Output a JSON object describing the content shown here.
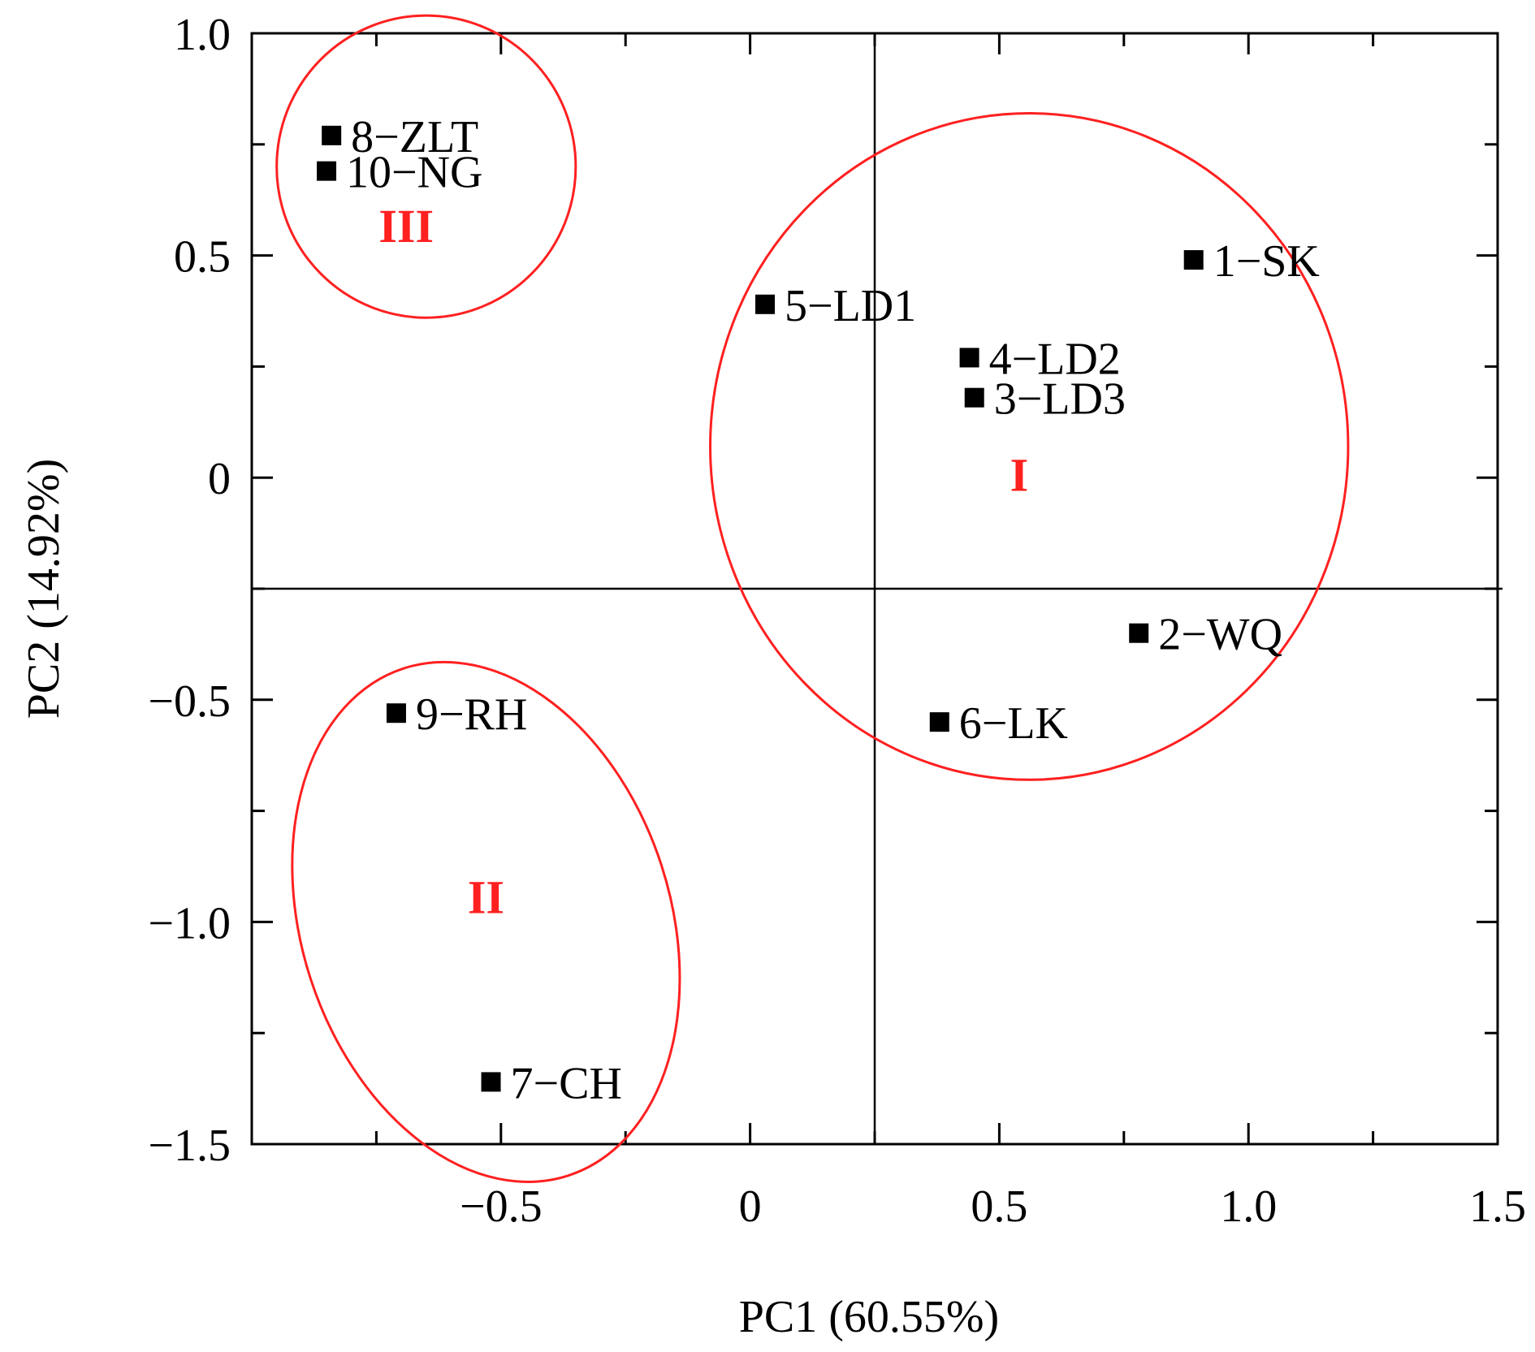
{
  "chart_data": {
    "type": "scatter",
    "title": "",
    "xlabel": "PC1 (60.55%)",
    "ylabel": "PC2 (14.92%)",
    "xlim": [
      -1.0,
      1.5
    ],
    "ylim": [
      -1.5,
      1.0
    ],
    "x_ticks": [
      -0.5,
      0,
      0.5,
      1.0,
      1.5
    ],
    "x_tick_labels": [
      "−0.5",
      "0",
      "0.5",
      "1.0",
      "1.5"
    ],
    "y_ticks": [
      1.0,
      0.5,
      0,
      -0.5,
      -1.0,
      -1.5
    ],
    "y_tick_labels": [
      "1.0",
      "0.5",
      "0",
      "−0.5",
      "−1.0",
      "−1.5"
    ],
    "reference_lines": {
      "x": 0.25,
      "y": -0.25
    },
    "grid": false,
    "legend": "none",
    "marker_color": "#000000",
    "group_color": "#ff2020",
    "points": [
      {
        "label": "1−SK",
        "x": 0.89,
        "y": 0.49
      },
      {
        "label": "2−WQ",
        "x": 0.78,
        "y": -0.35
      },
      {
        "label": "3−LD3",
        "x": 0.45,
        "y": 0.18
      },
      {
        "label": "4−LD2",
        "x": 0.44,
        "y": 0.27
      },
      {
        "label": "5−LD1",
        "x": 0.03,
        "y": 0.39
      },
      {
        "label": "6−LK",
        "x": 0.38,
        "y": -0.55
      },
      {
        "label": "7−CH",
        "x": -0.52,
        "y": -1.36
      },
      {
        "label": "8−ZLT",
        "x": -0.84,
        "y": 0.77
      },
      {
        "label": "9−RH",
        "x": -0.71,
        "y": -0.53
      },
      {
        "label": "10−NG",
        "x": -0.85,
        "y": 0.69
      }
    ],
    "groups": [
      {
        "label": "I",
        "cx": 0.56,
        "cy": 0.07,
        "rx": 0.64,
        "ry": 0.75,
        "label_x": 0.54,
        "label_y": -0.03
      },
      {
        "label": "II",
        "cx": -0.53,
        "cy": -1.0,
        "rx": 0.37,
        "ry": 0.6,
        "label_x": -0.53,
        "label_y": -0.98
      },
      {
        "label": "III",
        "cx": -0.65,
        "cy": 0.7,
        "rx": 0.3,
        "ry": 0.34,
        "label_x": -0.69,
        "label_y": 0.53
      }
    ]
  }
}
